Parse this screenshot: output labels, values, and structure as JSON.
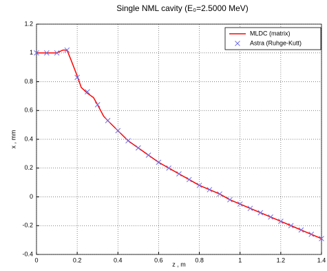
{
  "chart_data": {
    "type": "line",
    "title": "Single NML cavity  (E₀=2.5000 MeV)",
    "x_label": "z , m",
    "y_label": "x , mm",
    "xlim": [
      0,
      1.4
    ],
    "ylim": [
      -0.4,
      1.2
    ],
    "xticks": [
      0,
      0.2,
      0.4,
      0.6,
      0.8,
      1,
      1.2,
      1.4
    ],
    "yticks": [
      -0.4,
      -0.2,
      0,
      0.2,
      0.4,
      0.6,
      0.8,
      1,
      1.2
    ],
    "grid": true,
    "legend": "upper right",
    "series": [
      {
        "name": "MLDC (matrix)",
        "color": "#ff0000",
        "marker": "line",
        "x": [
          0,
          0.05,
          0.1,
          0.13,
          0.15,
          0.17,
          0.2,
          0.22,
          0.25,
          0.28,
          0.3,
          0.33,
          0.35,
          0.4,
          0.45,
          0.5,
          0.55,
          0.6,
          0.65,
          0.7,
          0.75,
          0.8,
          0.85,
          0.9,
          0.95,
          1.0,
          1.05,
          1.1,
          1.15,
          1.2,
          1.25,
          1.3,
          1.35,
          1.4
        ],
        "values": [
          1.0,
          1.0,
          1.0,
          1.02,
          1.02,
          0.95,
          0.84,
          0.76,
          0.72,
          0.69,
          0.64,
          0.56,
          0.53,
          0.46,
          0.39,
          0.34,
          0.29,
          0.24,
          0.2,
          0.16,
          0.12,
          0.08,
          0.05,
          0.02,
          -0.02,
          -0.05,
          -0.08,
          -0.11,
          -0.14,
          -0.17,
          -0.2,
          -0.23,
          -0.26,
          -0.29
        ]
      },
      {
        "name": "Astra (Ruhge-Kutt)",
        "color": "#6e6ee6",
        "marker": "x",
        "x": [
          0,
          0.05,
          0.1,
          0.15,
          0.2,
          0.25,
          0.3,
          0.35,
          0.4,
          0.45,
          0.5,
          0.55,
          0.6,
          0.65,
          0.7,
          0.75,
          0.8,
          0.85,
          0.9,
          0.95,
          1.0,
          1.05,
          1.1,
          1.15,
          1.2,
          1.25,
          1.3,
          1.35,
          1.4
        ],
        "values": [
          1.0,
          1.0,
          1.0,
          1.02,
          0.83,
          0.73,
          0.64,
          0.53,
          0.46,
          0.39,
          0.34,
          0.29,
          0.24,
          0.2,
          0.16,
          0.12,
          0.08,
          0.05,
          0.02,
          -0.02,
          -0.05,
          -0.08,
          -0.11,
          -0.14,
          -0.17,
          -0.2,
          -0.23,
          -0.26,
          -0.29
        ]
      }
    ]
  }
}
